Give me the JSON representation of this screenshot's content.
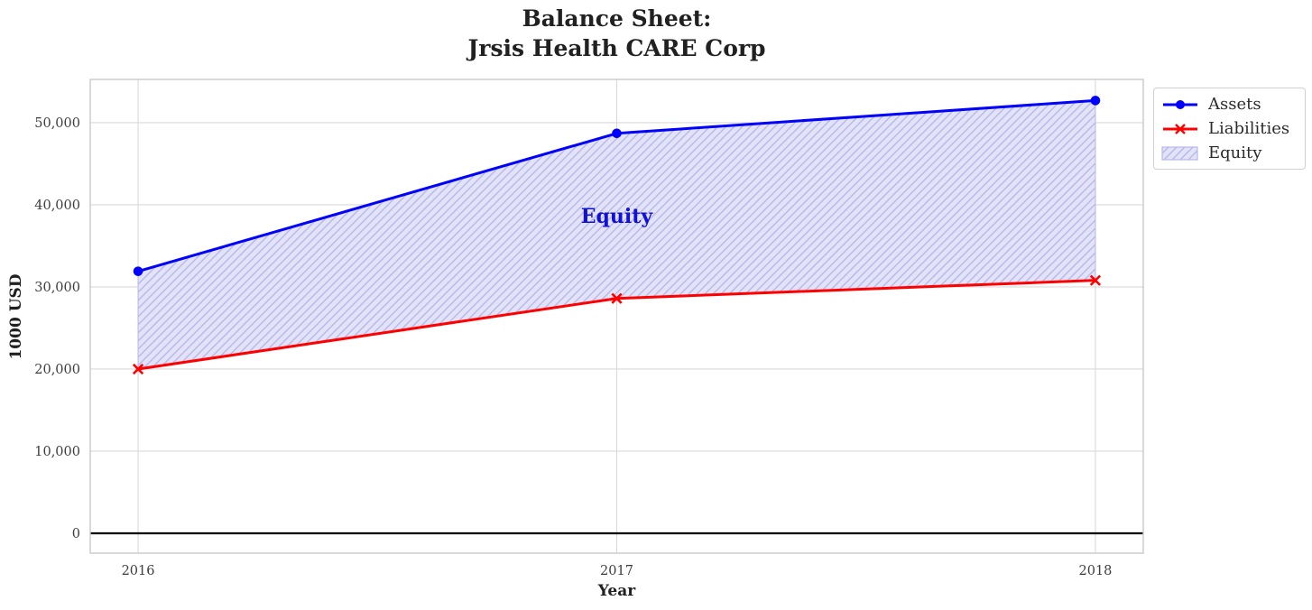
{
  "chart_data": {
    "type": "line",
    "title": "Balance Sheet:\nJrsis Health CARE Corp",
    "xlabel": "Year",
    "ylabel": "1000 USD",
    "x": [
      2016,
      2017,
      2018
    ],
    "series": [
      {
        "name": "Assets",
        "values": [
          31900,
          48700,
          52700
        ],
        "color": "#0000ff",
        "marker": "circle"
      },
      {
        "name": "Liabilities",
        "values": [
          20000,
          28600,
          30800
        ],
        "color": "#ff0000",
        "marker": "x"
      }
    ],
    "area": {
      "name": "Equity",
      "between": [
        "Assets",
        "Liabilities"
      ],
      "label": "Equity",
      "label_color": "#1111d6",
      "fill_color": "#e3e3f8",
      "hatch_color": "#b7b7ec",
      "hatch_style": "///",
      "annotation": {
        "x": 2017,
        "y": 38500
      }
    },
    "xlim": [
      2015.9,
      2018.1
    ],
    "ylim": [
      -2420,
      55270
    ],
    "xticks": [
      2016,
      2017,
      2018
    ],
    "xtick_labels": [
      "2016",
      "2017",
      "2018"
    ],
    "yticks": [
      0,
      10000,
      20000,
      30000,
      40000,
      50000
    ],
    "ytick_labels": [
      "0",
      "10,000",
      "20,000",
      "30,000",
      "40,000",
      "50,000"
    ],
    "axhline": 0,
    "grid": true,
    "grid_color": "#d9d9d9",
    "spine_color": "#c9c9c9",
    "tick_label_color": "#3d3d3d",
    "legend_position": "upper right outside"
  }
}
